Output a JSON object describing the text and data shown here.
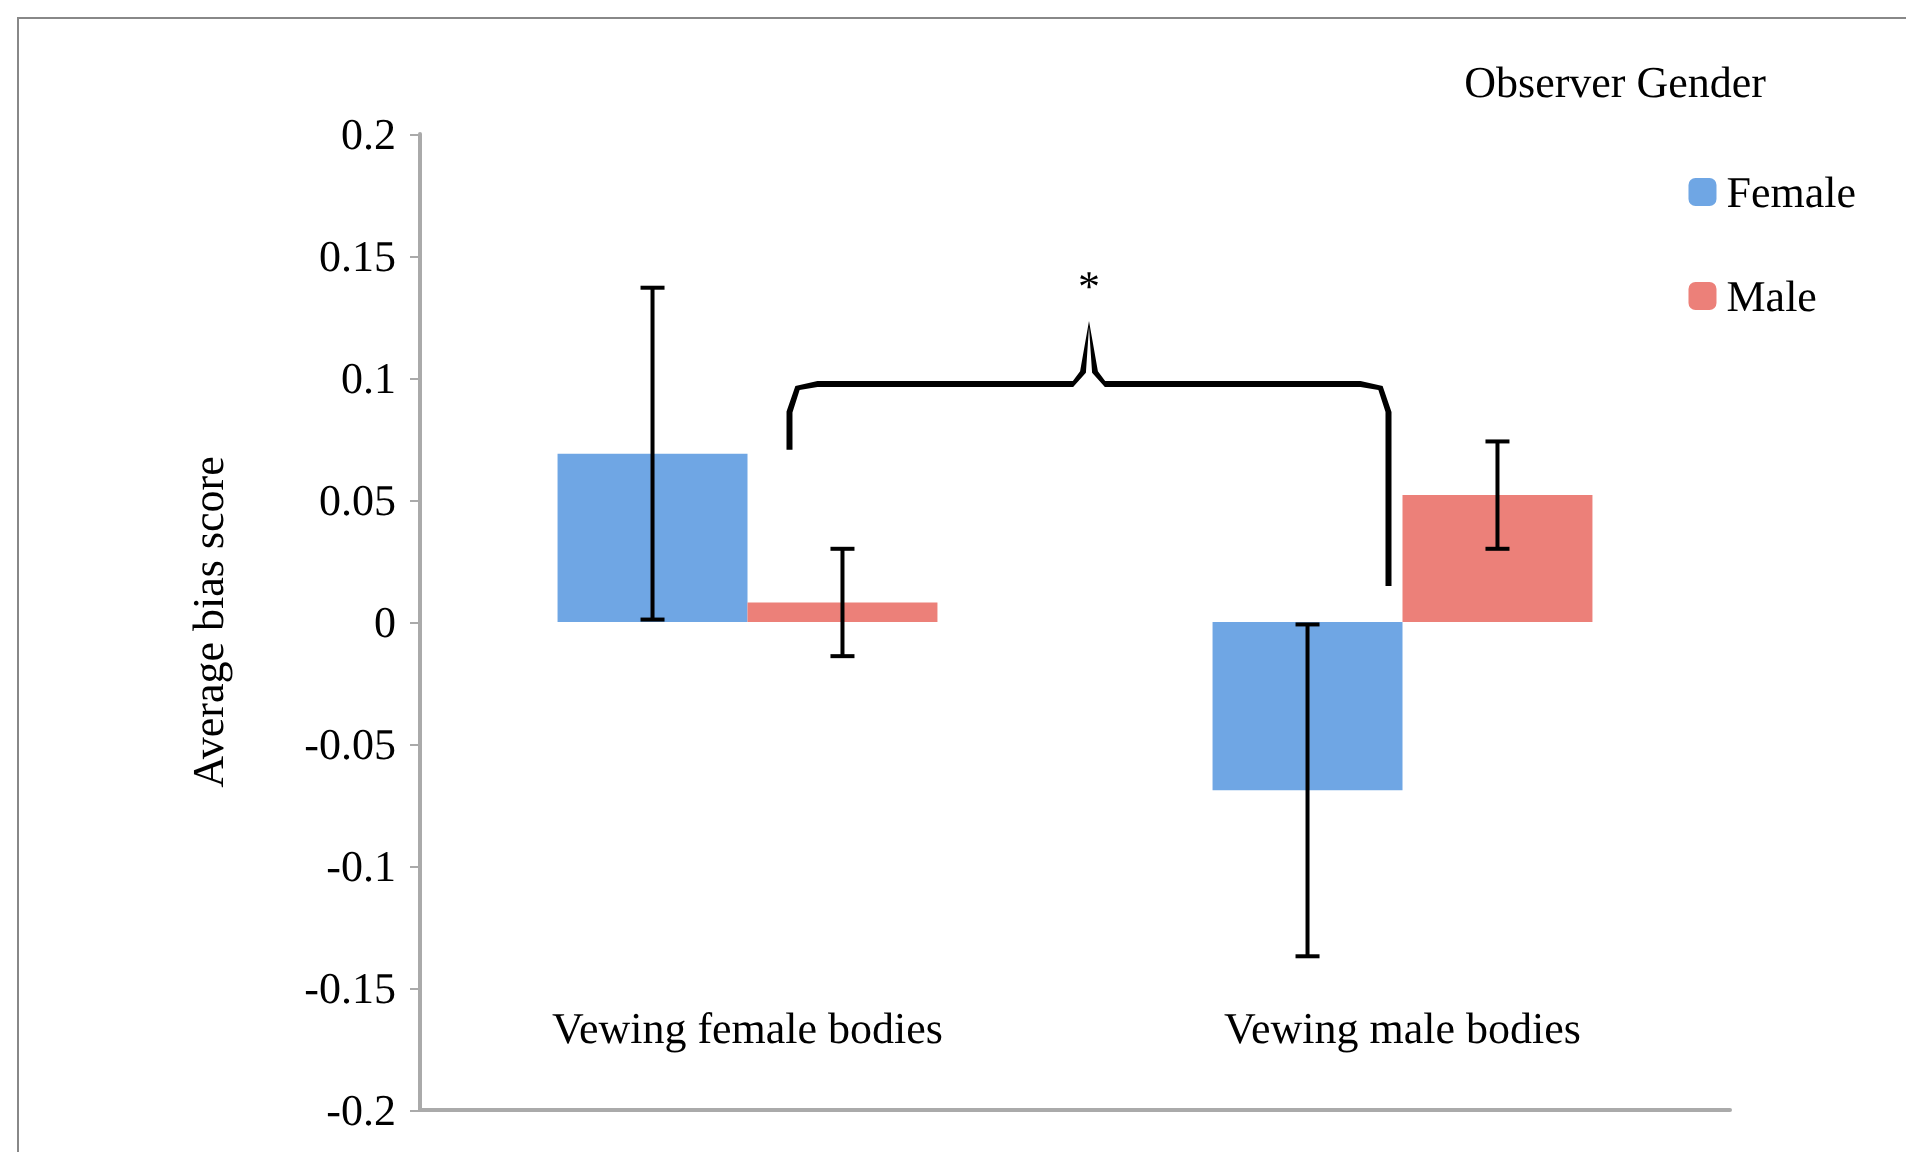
{
  "chart_data": {
    "type": "bar",
    "ylabel": "Average bias score",
    "legend_title": "Observer Gender",
    "categories": [
      "Vewing female bodies",
      "Vewing male bodies"
    ],
    "series": [
      {
        "name": "Female",
        "color": "#6fa6e4",
        "values": [
          0.069,
          -0.069
        ],
        "errors": [
          0.068,
          0.068
        ]
      },
      {
        "name": "Male",
        "color": "#ec8079",
        "values": [
          0.008,
          0.052
        ],
        "errors": [
          0.022,
          0.022
        ]
      }
    ],
    "ylim": [
      -0.2,
      0.2
    ],
    "yticks": [
      -0.2,
      -0.15,
      -0.1,
      -0.05,
      0,
      0.05,
      0.1,
      0.15,
      0.2
    ],
    "annotations": [
      "*"
    ],
    "grid": false,
    "legend": "top right"
  }
}
